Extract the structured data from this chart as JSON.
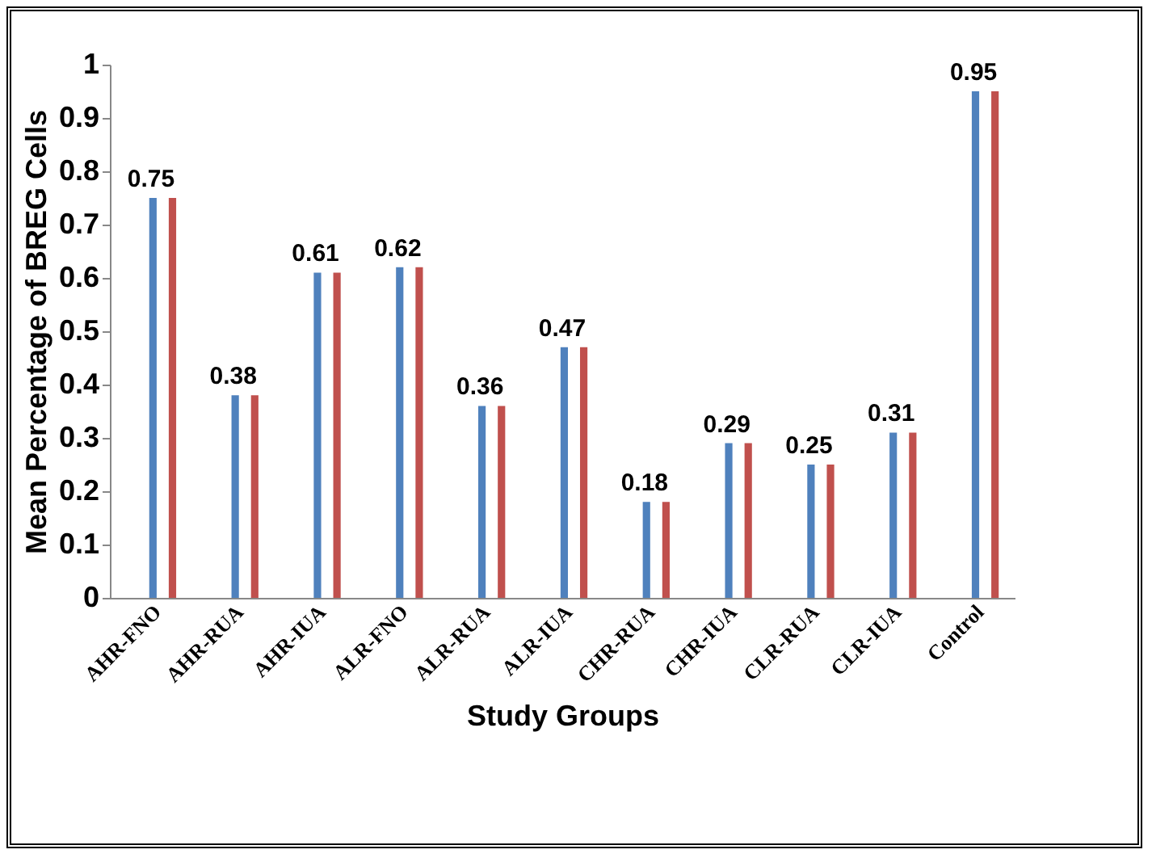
{
  "chart_data": {
    "type": "bar",
    "xlabel": "Study Groups",
    "ylabel": "Mean Percentage of BREG Cells",
    "categories": [
      "AHR-FNO",
      "AHR-RUA",
      "AHR-IUA",
      "ALR-FNO",
      "ALR-RUA",
      "ALR-IUA",
      "CHR-RUA",
      "CHR-IUA",
      "CLR-RUA",
      "CLR-IUA",
      "Control"
    ],
    "series": [
      {
        "color": "#4f81bd",
        "values": [
          0.75,
          0.38,
          0.61,
          0.62,
          0.36,
          0.47,
          0.18,
          0.29,
          0.25,
          0.31,
          0.95
        ],
        "value_labels": [
          "0.75",
          "0.38",
          "0.61",
          "0.62",
          "0.36",
          "0.47",
          "0.18",
          "0.29",
          "0.25",
          "0.31",
          "0.95"
        ]
      },
      {
        "color": "#c0504d",
        "values": [
          0.75,
          0.38,
          0.61,
          0.62,
          0.36,
          0.47,
          0.18,
          0.29,
          0.25,
          0.31,
          0.95
        ]
      }
    ],
    "ylim": [
      0,
      1
    ],
    "yticks": [
      0,
      0.1,
      0.2,
      0.3,
      0.4,
      0.5,
      0.6,
      0.7,
      0.8,
      0.9,
      1
    ],
    "grid": false,
    "legend": false
  }
}
